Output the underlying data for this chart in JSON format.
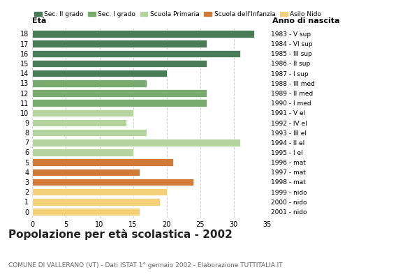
{
  "ages": [
    18,
    17,
    16,
    15,
    14,
    13,
    12,
    11,
    10,
    9,
    8,
    7,
    6,
    5,
    4,
    3,
    2,
    1,
    0
  ],
  "values": [
    33,
    26,
    31,
    26,
    20,
    17,
    26,
    26,
    15,
    14,
    17,
    31,
    15,
    21,
    16,
    24,
    20,
    19,
    16
  ],
  "categories": [
    "Sec. II grado",
    "Sec. II grado",
    "Sec. II grado",
    "Sec. II grado",
    "Sec. II grado",
    "Sec. I grado",
    "Sec. I grado",
    "Sec. I grado",
    "Scuola Primaria",
    "Scuola Primaria",
    "Scuola Primaria",
    "Scuola Primaria",
    "Scuola Primaria",
    "Scuola dell'Infanzia",
    "Scuola dell'Infanzia",
    "Scuola dell'Infanzia",
    "Asilo Nido",
    "Asilo Nido",
    "Asilo Nido"
  ],
  "right_labels": [
    "1983 - V sup",
    "1984 - VI sup",
    "1985 - III sup",
    "1986 - II sup",
    "1987 - I sup",
    "1988 - III med",
    "1989 - II med",
    "1990 - I med",
    "1991 - V el",
    "1992 - IV el",
    "1993 - III el",
    "1994 - II el",
    "1995 - I el",
    "1996 - mat",
    "1997 - mat",
    "1998 - mat",
    "1999 - nido",
    "2000 - nido",
    "2001 - nido"
  ],
  "colors": {
    "Sec. II grado": "#4a7c59",
    "Sec. I grado": "#7aab6e",
    "Scuola Primaria": "#b5d4a0",
    "Scuola dell'Infanzia": "#d07b3a",
    "Asilo Nido": "#f5d07a"
  },
  "legend_order": [
    "Sec. II grado",
    "Sec. I grado",
    "Scuola Primaria",
    "Scuola dell'Infanzia",
    "Asilo Nido"
  ],
  "title": "Popolazione per età scolastica - 2002",
  "subtitle": "COMUNE DI VALLERANO (VT) - Dati ISTAT 1° gennaio 2002 - Elaborazione TUTTITALIA.IT",
  "xlabel_left": "Età",
  "xlabel_right": "Anno di nascita",
  "xlim": [
    0,
    35
  ],
  "xticks": [
    0,
    5,
    10,
    15,
    20,
    25,
    30,
    35
  ],
  "bg_color": "#ffffff",
  "grid_color": "#cccccc"
}
